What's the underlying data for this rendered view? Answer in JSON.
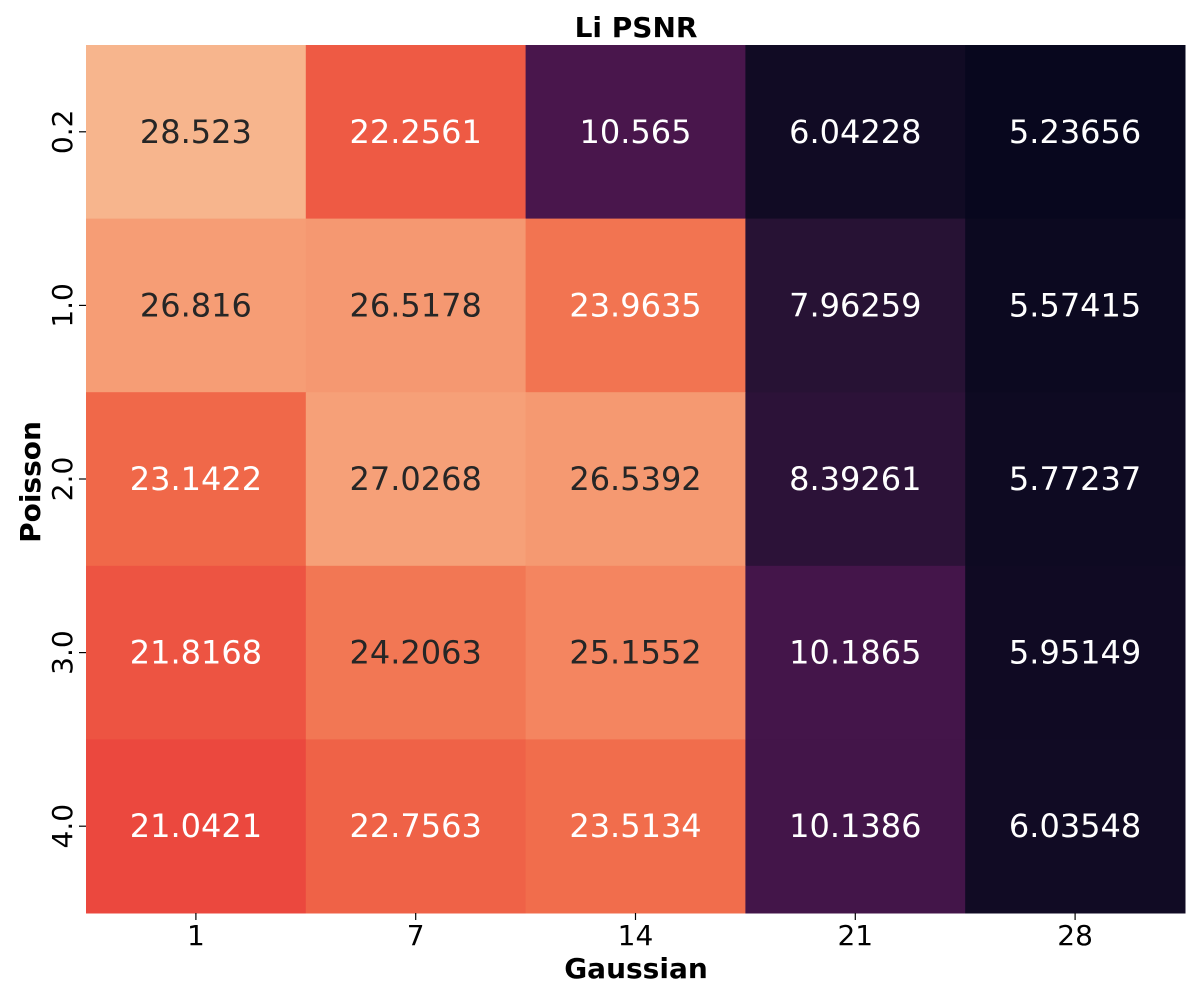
{
  "chart_data": {
    "type": "heatmap",
    "title": "Li PSNR",
    "xlabel": "Gaussian",
    "ylabel": "Poisson",
    "x_categories": [
      "1",
      "7",
      "14",
      "21",
      "28"
    ],
    "y_categories": [
      "0.2",
      "1.0",
      "2.0",
      "3.0",
      "4.0"
    ],
    "values": [
      [
        28.523,
        22.2561,
        10.565,
        6.04228,
        5.23656
      ],
      [
        26.816,
        26.5178,
        23.9635,
        7.96259,
        5.57415
      ],
      [
        23.1422,
        27.0268,
        26.5392,
        8.39261,
        5.77237
      ],
      [
        21.8168,
        24.2063,
        25.1552,
        10.1865,
        5.95149
      ],
      [
        21.0421,
        22.7563,
        23.5134,
        10.1386,
        6.03548
      ]
    ],
    "value_labels": [
      [
        "28.523",
        "22.2561",
        "10.565",
        "6.04228",
        "5.23656"
      ],
      [
        "26.816",
        "26.5178",
        "23.9635",
        "7.96259",
        "5.57415"
      ],
      [
        "23.1422",
        "27.0268",
        "26.5392",
        "8.39261",
        "5.77237"
      ],
      [
        "21.8168",
        "24.2063",
        "25.1552",
        "10.1865",
        "5.95149"
      ],
      [
        "21.0421",
        "22.7563",
        "23.5134",
        "10.1386",
        "6.03548"
      ]
    ],
    "colormap": "rocket",
    "colorbar": false
  }
}
